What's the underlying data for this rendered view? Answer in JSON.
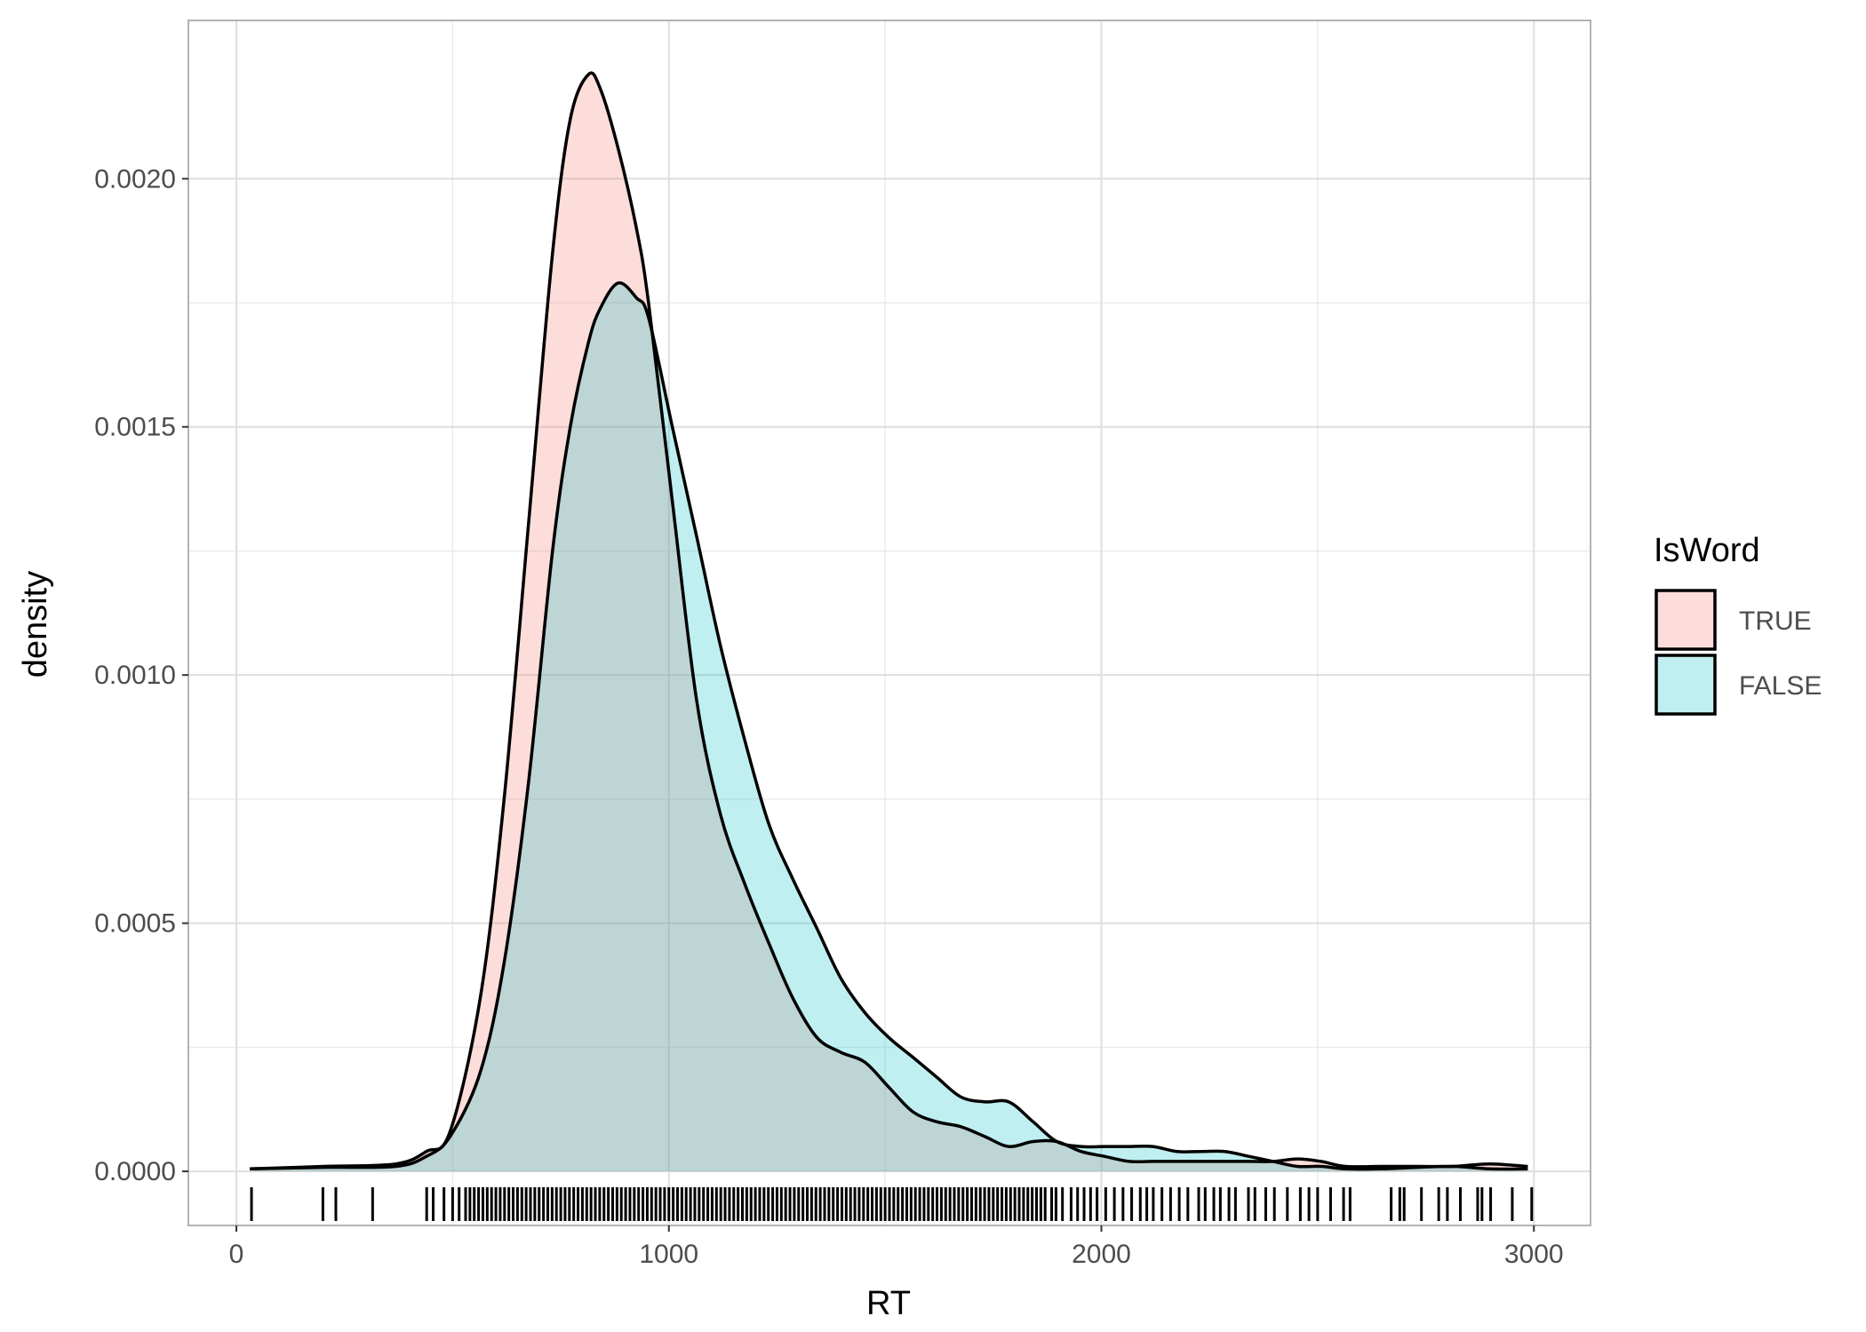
{
  "chart_data": {
    "type": "density",
    "x_label": "RT",
    "y_label": "density",
    "legend_title": "IsWord",
    "legend_position": "right",
    "xlim": [
      -111,
      3131
    ],
    "ylim": [
      -0.000109,
      0.002319
    ],
    "xticks": [
      0,
      1000,
      2000,
      3000
    ],
    "yticks": [
      {
        "value": 0,
        "label": "0.0000"
      },
      {
        "value": 0.0005,
        "label": "0.0005"
      },
      {
        "value": 0.001,
        "label": "0.0010"
      },
      {
        "value": 0.0015,
        "label": "0.0015"
      },
      {
        "value": 0.002,
        "label": "0.0020"
      }
    ],
    "grid": true,
    "x": [
      31,
      203,
      369,
      439,
      494,
      564,
      619,
      675,
      731,
      772,
      814,
      842,
      883,
      925,
      953,
      1008,
      1064,
      1119,
      1175,
      1231,
      1286,
      1342,
      1397,
      1453,
      1508,
      1564,
      1619,
      1675,
      1731,
      1786,
      1842,
      1897,
      1953,
      2008,
      2064,
      2119,
      2175,
      2231,
      2286,
      2342,
      2397,
      2453,
      2508,
      2564,
      2647,
      2731,
      2814,
      2897,
      2986
    ],
    "series": [
      {
        "name": "TRUE",
        "color": "#F8766D",
        "values": [
          5e-06,
          1e-05,
          1.5e-05,
          4e-05,
          8e-05,
          0.00035,
          0.00075,
          0.0013,
          0.00185,
          0.00212,
          0.00221,
          0.00218,
          0.00206,
          0.0019,
          0.00175,
          0.00135,
          0.00095,
          0.00072,
          0.00058,
          0.00046,
          0.00035,
          0.00027,
          0.00024,
          0.00022,
          0.00017,
          0.00012,
          0.0001,
          9e-05,
          7e-05,
          5e-05,
          6e-05,
          6e-05,
          4e-05,
          3e-05,
          2e-05,
          2e-05,
          2e-05,
          2e-05,
          2e-05,
          2e-05,
          2e-05,
          2.5e-05,
          2e-05,
          1e-05,
          1e-05,
          1e-05,
          1e-05,
          1.5e-05,
          1e-05
        ]
      },
      {
        "name": "FALSE",
        "color": "#00BFC4",
        "values": [
          5e-06,
          8e-06,
          1e-05,
          3e-05,
          7e-05,
          0.0002,
          0.00042,
          0.00078,
          0.00125,
          0.0015,
          0.00167,
          0.00174,
          0.00179,
          0.00176,
          0.00172,
          0.0015,
          0.00128,
          0.00106,
          0.00087,
          0.0007,
          0.00059,
          0.00049,
          0.00039,
          0.00032,
          0.00027,
          0.00023,
          0.00019,
          0.00015,
          0.00014,
          0.00014,
          0.0001,
          6e-05,
          5e-05,
          5e-05,
          5e-05,
          5e-05,
          4e-05,
          4e-05,
          4e-05,
          3e-05,
          2e-05,
          1e-05,
          1e-05,
          5e-06,
          5e-06,
          8e-06,
          1e-05,
          5e-06,
          5e-06
        ]
      }
    ],
    "rug": [
      35,
      200,
      230,
      315,
      440,
      455,
      480,
      500,
      515,
      530,
      540,
      550,
      560,
      570,
      580,
      590,
      600,
      610,
      620,
      630,
      640,
      650,
      660,
      670,
      680,
      690,
      700,
      710,
      720,
      730,
      740,
      750,
      760,
      770,
      780,
      790,
      800,
      810,
      820,
      830,
      840,
      850,
      860,
      870,
      880,
      890,
      900,
      910,
      920,
      930,
      940,
      950,
      960,
      970,
      980,
      990,
      1000,
      1010,
      1020,
      1030,
      1040,
      1050,
      1060,
      1070,
      1080,
      1090,
      1100,
      1110,
      1120,
      1130,
      1140,
      1150,
      1160,
      1170,
      1180,
      1190,
      1200,
      1210,
      1220,
      1230,
      1240,
      1250,
      1260,
      1270,
      1280,
      1290,
      1300,
      1310,
      1320,
      1330,
      1340,
      1350,
      1360,
      1370,
      1380,
      1390,
      1400,
      1410,
      1420,
      1430,
      1440,
      1450,
      1460,
      1470,
      1480,
      1490,
      1500,
      1510,
      1520,
      1530,
      1540,
      1550,
      1560,
      1570,
      1580,
      1590,
      1600,
      1610,
      1620,
      1630,
      1640,
      1650,
      1660,
      1670,
      1680,
      1690,
      1700,
      1710,
      1720,
      1730,
      1740,
      1750,
      1760,
      1770,
      1780,
      1790,
      1800,
      1810,
      1820,
      1830,
      1840,
      1850,
      1860,
      1870,
      1885,
      1895,
      1910,
      1930,
      1945,
      1960,
      1975,
      1990,
      2010,
      2030,
      2050,
      2070,
      2090,
      2105,
      2120,
      2140,
      2160,
      2180,
      2200,
      2225,
      2240,
      2260,
      2275,
      2295,
      2310,
      2340,
      2355,
      2380,
      2400,
      2430,
      2460,
      2480,
      2500,
      2530,
      2560,
      2575,
      2670,
      2690,
      2700,
      2740,
      2780,
      2800,
      2830,
      2870,
      2880,
      2900,
      2950,
      2995
    ]
  }
}
